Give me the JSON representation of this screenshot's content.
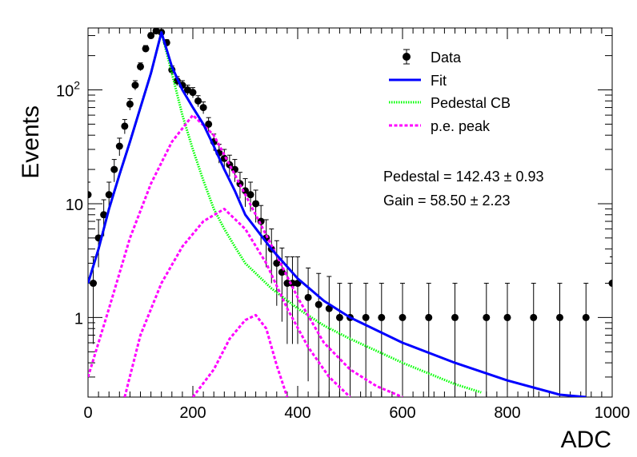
{
  "chart_data": {
    "type": "scatter",
    "xlabel": "ADC",
    "ylabel": "Events",
    "xlim": [
      0,
      1000
    ],
    "ylim": [
      0.2,
      350
    ],
    "yscale": "log",
    "x_ticks": [
      "0",
      "200",
      "400",
      "600",
      "800",
      "1000"
    ],
    "y_ticks": [
      {
        "value": 1,
        "label": "1"
      },
      {
        "value": 10,
        "label": "10"
      },
      {
        "value": 100,
        "label": "10",
        "exponent": "2"
      }
    ],
    "legend": {
      "placement": "top-right",
      "entries": [
        {
          "label": "Data",
          "style": "marker-errorbar",
          "color": "#000000"
        },
        {
          "label": "Fit",
          "style": "solid",
          "color": "#0000ff"
        },
        {
          "label": "Pedestal CB",
          "style": "dotted",
          "color": "#00ff00"
        },
        {
          "label": "p.e. peak",
          "style": "dashed",
          "color": "#ff00ff"
        }
      ]
    },
    "annotations": [
      {
        "text": "Pedestal = 142.43 ± 0.93"
      },
      {
        "text": "Gain = 58.50 ± 2.23"
      }
    ],
    "data_points": {
      "x": [
        0,
        10,
        20,
        30,
        40,
        50,
        60,
        70,
        80,
        90,
        100,
        110,
        120,
        130,
        140,
        150,
        160,
        170,
        180,
        190,
        200,
        210,
        220,
        230,
        240,
        250,
        260,
        270,
        280,
        290,
        300,
        310,
        320,
        330,
        340,
        350,
        360,
        370,
        380,
        390,
        400,
        420,
        440,
        460,
        480,
        500,
        530,
        560,
        600,
        650,
        700,
        760,
        800,
        850,
        900,
        950,
        1000
      ],
      "y": [
        12,
        2,
        5,
        8,
        12,
        20,
        32,
        48,
        75,
        110,
        160,
        230,
        300,
        330,
        320,
        260,
        150,
        120,
        110,
        100,
        95,
        80,
        70,
        50,
        35,
        28,
        25,
        22,
        20,
        15,
        13,
        12,
        10,
        7,
        5,
        4,
        3,
        2.5,
        2,
        2,
        2,
        1.5,
        1.3,
        1.2,
        1,
        1,
        1,
        1,
        1,
        1,
        1,
        1,
        1,
        1,
        1,
        1,
        2
      ]
    },
    "series": [
      {
        "name": "Fit",
        "color": "#0000ff",
        "x": [
          0,
          20,
          40,
          60,
          80,
          100,
          120,
          140,
          160,
          180,
          200,
          220,
          240,
          260,
          280,
          300,
          350,
          400,
          450,
          500,
          600,
          700,
          800,
          900,
          950
        ],
        "y": [
          2,
          4,
          9,
          18,
          35,
          70,
          140,
          320,
          160,
          100,
          70,
          50,
          32,
          20,
          13,
          8,
          4,
          2.2,
          1.4,
          1,
          0.6,
          0.4,
          0.28,
          0.21,
          0.2
        ]
      },
      {
        "name": "Pedestal CB",
        "color": "#00ff00",
        "x": [
          0,
          20,
          40,
          60,
          80,
          100,
          120,
          140,
          160,
          180,
          200,
          220,
          240,
          260,
          280,
          300,
          350,
          400,
          450,
          500,
          600,
          700,
          750
        ],
        "y": [
          2,
          4,
          9,
          18,
          35,
          70,
          140,
          320,
          140,
          60,
          30,
          16,
          9,
          6,
          4.2,
          3,
          1.8,
          1.2,
          0.85,
          0.65,
          0.4,
          0.26,
          0.22
        ]
      },
      {
        "name": "p.e. peak",
        "color": "#ff00ff",
        "x": [
          0,
          40,
          80,
          120,
          160,
          200,
          240,
          280,
          320,
          360,
          400,
          450,
          500,
          550,
          600
        ],
        "y": [
          0.3,
          1.2,
          5,
          15,
          35,
          60,
          40,
          18,
          8,
          3.5,
          1.5,
          0.6,
          0.35,
          0.25,
          0.2
        ]
      },
      {
        "name": "",
        "color": "#ff00ff",
        "x": [
          70,
          100,
          140,
          180,
          220,
          260,
          300,
          340,
          380,
          420,
          460,
          500
        ],
        "y": [
          0.2,
          0.7,
          2,
          4.2,
          7,
          9,
          6,
          3,
          1.2,
          0.55,
          0.3,
          0.2
        ]
      },
      {
        "name": "",
        "color": "#ff00ff",
        "x": [
          200,
          240,
          270,
          300,
          320,
          340,
          360,
          380
        ],
        "y": [
          0.2,
          0.35,
          0.65,
          0.95,
          1.05,
          0.8,
          0.38,
          0.2
        ]
      }
    ]
  }
}
